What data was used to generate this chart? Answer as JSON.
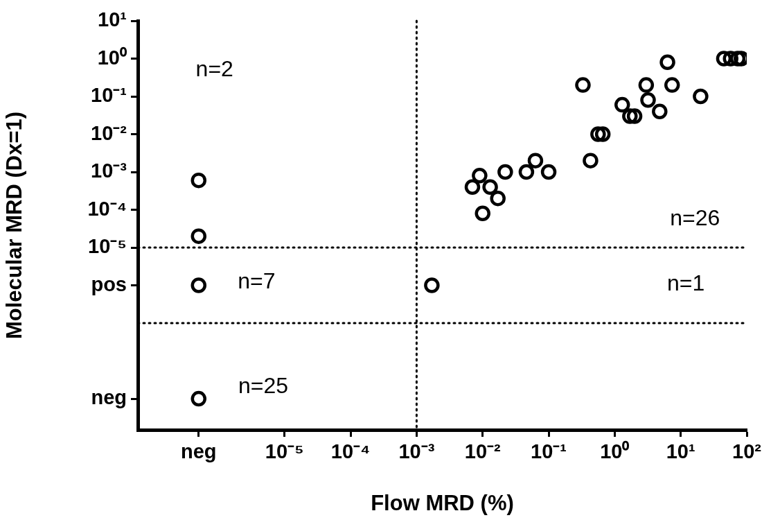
{
  "chart_data": {
    "type": "scatter",
    "xlabel": "Flow MRD (%)",
    "ylabel": "Molecular MRD (Dx=1)",
    "log": "xy",
    "grid": false,
    "legend": false,
    "marker": "circle",
    "xlim": [
      6e-08,
      100
    ],
    "xticks": [
      {
        "value": 5e-07,
        "label": "neg"
      },
      {
        "value": 1e-05,
        "label": "10⁻⁵"
      },
      {
        "value": 0.0001,
        "label": "10⁻⁴"
      },
      {
        "value": 0.001,
        "label": "10⁻³"
      },
      {
        "value": 0.01,
        "label": "10⁻²"
      },
      {
        "value": 0.1,
        "label": "10⁻¹"
      },
      {
        "value": 1,
        "label": "10⁰"
      },
      {
        "value": 10,
        "label": "10¹"
      },
      {
        "value": 100,
        "label": "10²"
      }
    ],
    "ylim": [
      1.5e-10,
      10
    ],
    "yticks": [
      {
        "value": 1e-09,
        "label": "neg"
      },
      {
        "value": 1e-06,
        "label": "pos"
      },
      {
        "value": 1e-05,
        "label": "10⁻⁵"
      },
      {
        "value": 0.0001,
        "label": "10⁻⁴"
      },
      {
        "value": 0.001,
        "label": "10⁻³"
      },
      {
        "value": 0.01,
        "label": "10⁻²"
      },
      {
        "value": 0.1,
        "label": "10⁻¹"
      },
      {
        "value": 1,
        "label": "10⁰"
      },
      {
        "value": 10,
        "label": "10¹"
      }
    ],
    "series": [
      {
        "color": "#000000",
        "x": [
          5e-07,
          5e-07,
          5e-07,
          5e-07,
          0.0017,
          0.007,
          0.009,
          0.013,
          0.017,
          0.01,
          0.022,
          0.046,
          0.063,
          0.1,
          0.33,
          0.43,
          0.56,
          0.66,
          1.3,
          1.7,
          2,
          3,
          3.2,
          4.8,
          6.3,
          7.4,
          20,
          45,
          57,
          73,
          83
        ],
        "values": [
          0.0006,
          2e-05,
          1e-06,
          1e-09,
          1e-06,
          0.0004,
          0.0008,
          0.0004,
          0.0002,
          8e-05,
          0.001,
          0.001,
          0.002,
          0.001,
          0.2,
          0.002,
          0.01,
          0.01,
          0.06,
          0.03,
          0.03,
          0.2,
          0.08,
          0.04,
          0.8,
          0.2,
          0.1,
          1,
          1,
          1,
          1
        ]
      }
    ],
    "ref_lines": [
      {
        "axis": "y",
        "value": 1e-05,
        "line_style": "dotted"
      },
      {
        "axis": "y",
        "value": 1e-07,
        "line_style": "dotted"
      },
      {
        "axis": "x",
        "value": 0.001,
        "line_style": "dotted"
      }
    ],
    "annotations": [
      "n=2",
      "n=7",
      "n=25",
      "n=26",
      "n=1"
    ]
  }
}
